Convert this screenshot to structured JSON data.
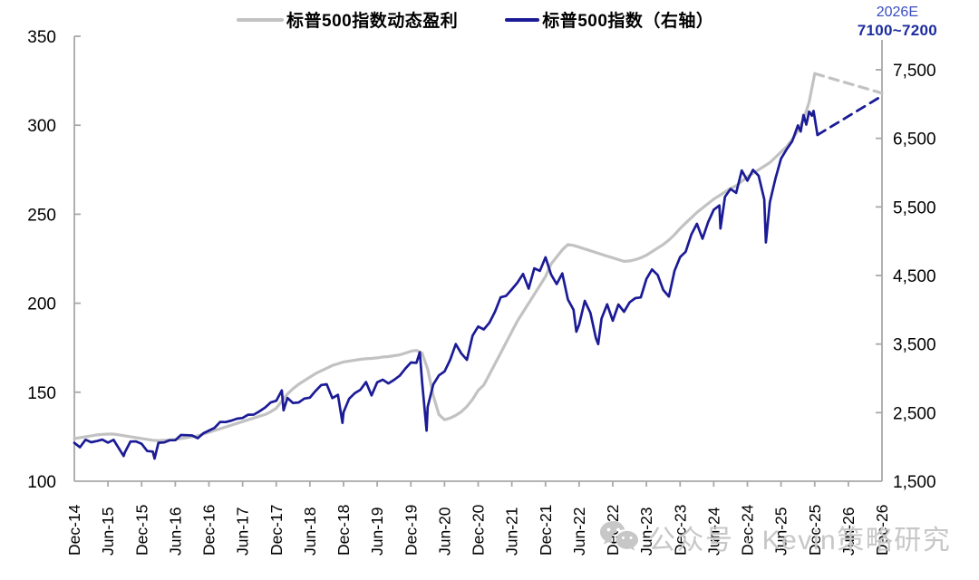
{
  "legend": {
    "items": [
      {
        "key": "eps",
        "label": "标普500指数动态盈利",
        "color": "#c2c2c2"
      },
      {
        "key": "spx",
        "label": "标普500指数（右轴）",
        "color": "#1b1b96"
      }
    ]
  },
  "annotation": {
    "year": "2026E",
    "range": "7100~7200",
    "year_color": "#3a4cc1",
    "range_color": "#1c2c9e"
  },
  "watermark": {
    "icon": "wechat-icon",
    "text": "公众号 · Kevin策略研究",
    "color": "#c7c7c7"
  },
  "colors": {
    "axis_line": "#a8a8a8",
    "tick_text": "#000000",
    "eps_line": "#c2c2c2",
    "spx_line": "#1b1b96"
  },
  "chart_data": {
    "type": "line",
    "title": "",
    "grid": false,
    "legend_position": "top-center",
    "x_axis": {
      "unit": "months since Dec-2014",
      "months_per_label": 6,
      "range_months": [
        0,
        144
      ],
      "tick_labels": [
        "Dec-14",
        "Jun-15",
        "Dec-15",
        "Jun-16",
        "Dec-16",
        "Jun-17",
        "Dec-17",
        "Jun-18",
        "Dec-18",
        "Jun-19",
        "Dec-19",
        "Jun-20",
        "Dec-20",
        "Jun-21",
        "Dec-21",
        "Jun-22",
        "Dec-22",
        "Jun-23",
        "Dec-23",
        "Jun-24",
        "Dec-24",
        "Jun-25",
        "Dec-25",
        "Jun-26",
        "Dec-26"
      ]
    },
    "left_axis": {
      "min": 100,
      "max": 350,
      "ticks": [
        {
          "v": 100,
          "label": "100"
        },
        {
          "v": 150,
          "label": "150"
        },
        {
          "v": 200,
          "label": "200"
        },
        {
          "v": 250,
          "label": "250"
        },
        {
          "v": 300,
          "label": "300"
        },
        {
          "v": 350,
          "label": "350"
        }
      ]
    },
    "right_axis": {
      "min": 1500,
      "max": 7500,
      "ticks": [
        {
          "v": 1500,
          "label": "1,500"
        },
        {
          "v": 2500,
          "label": "2,500"
        },
        {
          "v": 3500,
          "label": "3,500"
        },
        {
          "v": 4500,
          "label": "4,500"
        },
        {
          "v": 5500,
          "label": "5,500"
        },
        {
          "v": 6500,
          "label": "6,500"
        },
        {
          "v": 7500,
          "label": "7,500"
        }
      ]
    },
    "series": [
      {
        "key": "eps-line",
        "name": "标普500指数动态盈利",
        "axis": "left",
        "style": "solid",
        "color": "#c2c2c2",
        "width": 3.2,
        "points": [
          [
            0,
            124
          ],
          [
            1,
            124.5
          ],
          [
            2,
            125
          ],
          [
            3,
            125.5
          ],
          [
            4,
            126
          ],
          [
            5,
            126.3
          ],
          [
            6,
            126.5
          ],
          [
            7,
            126.5
          ],
          [
            8,
            126
          ],
          [
            9,
            125.5
          ],
          [
            10,
            125
          ],
          [
            11,
            124.5
          ],
          [
            12,
            124
          ],
          [
            13,
            123.5
          ],
          [
            14,
            123
          ],
          [
            15,
            122.8
          ],
          [
            16,
            123
          ],
          [
            17,
            123.2
          ],
          [
            18,
            123.5
          ],
          [
            19,
            124
          ],
          [
            20,
            124.5
          ],
          [
            21,
            125
          ],
          [
            22,
            125.5
          ],
          [
            23,
            126.5
          ],
          [
            24,
            127.5
          ],
          [
            25,
            128.5
          ],
          [
            26,
            129.5
          ],
          [
            27,
            130.5
          ],
          [
            28,
            131.5
          ],
          [
            29,
            132.5
          ],
          [
            30,
            133.5
          ],
          [
            31,
            134.5
          ],
          [
            32,
            135.5
          ],
          [
            33,
            136.5
          ],
          [
            34,
            137.5
          ],
          [
            35,
            139
          ],
          [
            36,
            141
          ],
          [
            37,
            145
          ],
          [
            38,
            149
          ],
          [
            39,
            152
          ],
          [
            40,
            154.5
          ],
          [
            41,
            156.5
          ],
          [
            42,
            158.5
          ],
          [
            43,
            160.5
          ],
          [
            44,
            162
          ],
          [
            45,
            163.5
          ],
          [
            46,
            165
          ],
          [
            47,
            166
          ],
          [
            48,
            167
          ],
          [
            49,
            167.5
          ],
          [
            50,
            168
          ],
          [
            51,
            168.5
          ],
          [
            52,
            168.8
          ],
          [
            53,
            169
          ],
          [
            54,
            169.3
          ],
          [
            55,
            169.8
          ],
          [
            56,
            170
          ],
          [
            57,
            170.5
          ],
          [
            58,
            171
          ],
          [
            59,
            172
          ],
          [
            60,
            173
          ],
          [
            61,
            173.5
          ],
          [
            62,
            172
          ],
          [
            63,
            163
          ],
          [
            64,
            148
          ],
          [
            65,
            137.5
          ],
          [
            66,
            134.5
          ],
          [
            67,
            135.5
          ],
          [
            68,
            137
          ],
          [
            69,
            139
          ],
          [
            70,
            142
          ],
          [
            71,
            146
          ],
          [
            72,
            151
          ],
          [
            73,
            154
          ],
          [
            74,
            160
          ],
          [
            75,
            166
          ],
          [
            76,
            172
          ],
          [
            77,
            178
          ],
          [
            78,
            184
          ],
          [
            79,
            190
          ],
          [
            80,
            195
          ],
          [
            81,
            200
          ],
          [
            82,
            205
          ],
          [
            83,
            210
          ],
          [
            84,
            215
          ],
          [
            85,
            222
          ],
          [
            86,
            226
          ],
          [
            87,
            230
          ],
          [
            88,
            233
          ],
          [
            89,
            232.5
          ],
          [
            90,
            231.5
          ],
          [
            91,
            230.5
          ],
          [
            92,
            229.5
          ],
          [
            93,
            228.5
          ],
          [
            94,
            227.5
          ],
          [
            95,
            226.5
          ],
          [
            96,
            225.5
          ],
          [
            97,
            224.5
          ],
          [
            98,
            223.5
          ],
          [
            99,
            223.8
          ],
          [
            100,
            224.5
          ],
          [
            101,
            225.5
          ],
          [
            102,
            227
          ],
          [
            103,
            229
          ],
          [
            104,
            231
          ],
          [
            105,
            233
          ],
          [
            106,
            235.5
          ],
          [
            107,
            238.5
          ],
          [
            108,
            242
          ],
          [
            109,
            245
          ],
          [
            110,
            248
          ],
          [
            111,
            251
          ],
          [
            112,
            253.5
          ],
          [
            113,
            256
          ],
          [
            114,
            258.5
          ],
          [
            115,
            260.5
          ],
          [
            116,
            262.5
          ],
          [
            117,
            264.5
          ],
          [
            118,
            266
          ],
          [
            119,
            268.5
          ],
          [
            120,
            271
          ],
          [
            121,
            273
          ],
          [
            122,
            275
          ],
          [
            123,
            277
          ],
          [
            124,
            279
          ],
          [
            125,
            282
          ],
          [
            126,
            285
          ],
          [
            127,
            288
          ],
          [
            128,
            292
          ],
          [
            129,
            297
          ],
          [
            130,
            303
          ],
          [
            131,
            313
          ],
          [
            132,
            329
          ]
        ]
      },
      {
        "key": "eps-forecast-line",
        "name": "标普500指数动态盈利(预测)",
        "axis": "left",
        "style": "dashed",
        "color": "#c2c2c2",
        "width": 3.2,
        "points": [
          [
            132,
            329
          ],
          [
            144,
            318
          ]
        ]
      },
      {
        "key": "spx-line",
        "name": "标普500指数",
        "axis": "right",
        "style": "solid",
        "color": "#1b1b96",
        "width": 2.7,
        "points": [
          [
            0,
            2059
          ],
          [
            1,
            1995
          ],
          [
            2,
            2105
          ],
          [
            3,
            2068
          ],
          [
            4,
            2086
          ],
          [
            5,
            2107
          ],
          [
            6,
            2063
          ],
          [
            7,
            2104
          ],
          [
            8,
            1972
          ],
          [
            8.8,
            1867
          ],
          [
            9,
            1920
          ],
          [
            10,
            2079
          ],
          [
            11,
            2080
          ],
          [
            12,
            2044
          ],
          [
            13,
            1940
          ],
          [
            14,
            1932
          ],
          [
            14.3,
            1829
          ],
          [
            15,
            2060
          ],
          [
            16,
            2065
          ],
          [
            17,
            2097
          ],
          [
            18,
            2099
          ],
          [
            19,
            2174
          ],
          [
            20,
            2171
          ],
          [
            21,
            2168
          ],
          [
            22,
            2126
          ],
          [
            23,
            2199
          ],
          [
            24,
            2239
          ],
          [
            25,
            2279
          ],
          [
            26,
            2364
          ],
          [
            27,
            2363
          ],
          [
            28,
            2384
          ],
          [
            29,
            2412
          ],
          [
            30,
            2423
          ],
          [
            31,
            2470
          ],
          [
            32,
            2472
          ],
          [
            33,
            2519
          ],
          [
            34,
            2575
          ],
          [
            35,
            2648
          ],
          [
            36,
            2674
          ],
          [
            37,
            2824
          ],
          [
            37.3,
            2533
          ],
          [
            38,
            2714
          ],
          [
            39,
            2641
          ],
          [
            40,
            2648
          ],
          [
            41,
            2705
          ],
          [
            42,
            2718
          ],
          [
            43,
            2816
          ],
          [
            44,
            2902
          ],
          [
            45,
            2914
          ],
          [
            46,
            2712
          ],
          [
            47,
            2760
          ],
          [
            47.8,
            2351
          ],
          [
            48,
            2507
          ],
          [
            49,
            2704
          ],
          [
            50,
            2785
          ],
          [
            51,
            2834
          ],
          [
            52,
            2946
          ],
          [
            53,
            2752
          ],
          [
            54,
            2942
          ],
          [
            55,
            2980
          ],
          [
            56,
            2926
          ],
          [
            57,
            2977
          ],
          [
            58,
            3038
          ],
          [
            59,
            3141
          ],
          [
            60,
            3231
          ],
          [
            61,
            3226
          ],
          [
            61.6,
            3380
          ],
          [
            62,
            2954
          ],
          [
            62.8,
            2237
          ],
          [
            63,
            2585
          ],
          [
            64,
            2912
          ],
          [
            65,
            3044
          ],
          [
            66,
            3100
          ],
          [
            67,
            3271
          ],
          [
            68,
            3500
          ],
          [
            69,
            3363
          ],
          [
            70,
            3270
          ],
          [
            71,
            3622
          ],
          [
            72,
            3756
          ],
          [
            73,
            3714
          ],
          [
            74,
            3811
          ],
          [
            75,
            3973
          ],
          [
            76,
            4181
          ],
          [
            77,
            4204
          ],
          [
            78,
            4298
          ],
          [
            79,
            4395
          ],
          [
            80,
            4523
          ],
          [
            81,
            4308
          ],
          [
            82,
            4605
          ],
          [
            83,
            4567
          ],
          [
            84,
            4766
          ],
          [
            85,
            4516
          ],
          [
            86,
            4374
          ],
          [
            87,
            4530
          ],
          [
            88,
            4150
          ],
          [
            89,
            4000
          ],
          [
            89.5,
            3680
          ],
          [
            90,
            3785
          ],
          [
            91,
            4130
          ],
          [
            92,
            3955
          ],
          [
            93,
            3586
          ],
          [
            93.4,
            3500
          ],
          [
            94,
            3872
          ],
          [
            95,
            4080
          ],
          [
            96,
            3840
          ],
          [
            97,
            4077
          ],
          [
            98,
            3970
          ],
          [
            99,
            4109
          ],
          [
            100,
            4169
          ],
          [
            101,
            4180
          ],
          [
            102,
            4450
          ],
          [
            103,
            4589
          ],
          [
            104,
            4508
          ],
          [
            105,
            4288
          ],
          [
            106,
            4194
          ],
          [
            107,
            4568
          ],
          [
            108,
            4770
          ],
          [
            109,
            4846
          ],
          [
            110,
            5096
          ],
          [
            111,
            5254
          ],
          [
            112,
            5036
          ],
          [
            113,
            5278
          ],
          [
            114,
            5460
          ],
          [
            115,
            5522
          ],
          [
            115.2,
            5186
          ],
          [
            116,
            5648
          ],
          [
            117,
            5762
          ],
          [
            118,
            5705
          ],
          [
            119,
            6032
          ],
          [
            120,
            5882
          ],
          [
            121,
            6041
          ],
          [
            122,
            5955
          ],
          [
            123,
            5612
          ],
          [
            123.3,
            4983
          ],
          [
            124,
            5569
          ],
          [
            125,
            5912
          ],
          [
            126,
            6205
          ],
          [
            127,
            6340
          ],
          [
            128,
            6460
          ],
          [
            129,
            6689
          ],
          [
            129.5,
            6600
          ],
          [
            130,
            6840
          ],
          [
            130.5,
            6700
          ],
          [
            131,
            6890
          ],
          [
            131.5,
            6830
          ],
          [
            131.8,
            6900
          ],
          [
            132.5,
            6550
          ]
        ]
      },
      {
        "key": "spx-forecast-line",
        "name": "标普500指数(预测)",
        "axis": "right",
        "style": "dashed",
        "color": "#1b1b96",
        "width": 2.8,
        "points": [
          [
            132.5,
            6550
          ],
          [
            144,
            7120
          ]
        ]
      }
    ]
  }
}
